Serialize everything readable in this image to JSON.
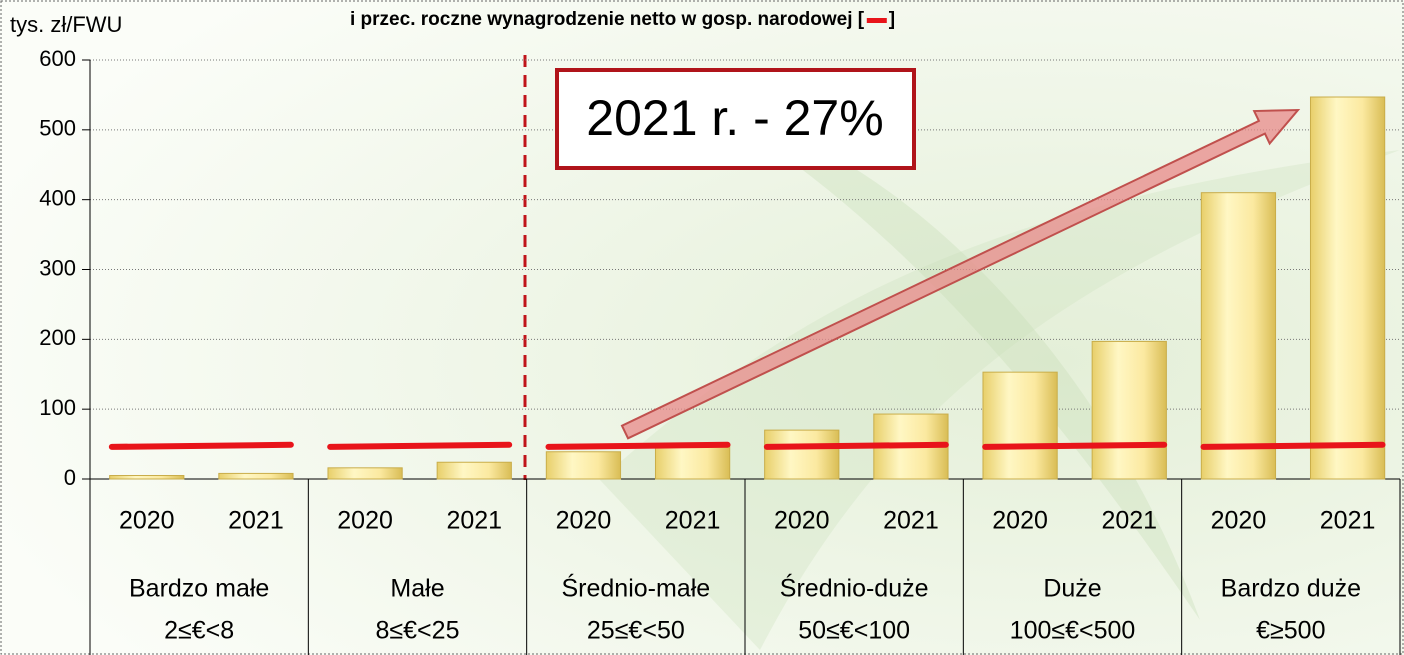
{
  "chart_data": {
    "type": "bar",
    "title": "i przec. roczne wynagrodzenie netto w gosp. narodowej [",
    "title_close": "]",
    "y_label": "tys. zł/FWU",
    "annotation": "2021 r. - 27%",
    "groups": [
      "Bardzo małe",
      "Małe",
      "Średnio-małe",
      "Średnio-duże",
      "Duże",
      "Bardzo duże"
    ],
    "group_ranges": [
      "2≤€<8",
      "8≤€<25",
      "25≤€<50",
      "50≤€<100",
      "100≤€<500",
      "€≥500"
    ],
    "series": [
      {
        "name": "2020",
        "color": "#f5e08a",
        "values": [
          5,
          16,
          39,
          70,
          153,
          410
        ]
      },
      {
        "name": "2021",
        "color": "#f5e08a",
        "values": [
          8,
          24,
          49,
          93,
          197,
          547
        ]
      }
    ],
    "net_wage": {
      "color": "#e8141a",
      "values_2020": [
        46,
        46,
        46,
        46,
        46,
        46
      ],
      "values_2021": [
        49,
        49,
        49,
        49,
        49,
        49
      ]
    },
    "ylim": [
      0,
      600
    ],
    "yticks": [
      0,
      100,
      200,
      300,
      400,
      500,
      600
    ],
    "grid": true
  }
}
